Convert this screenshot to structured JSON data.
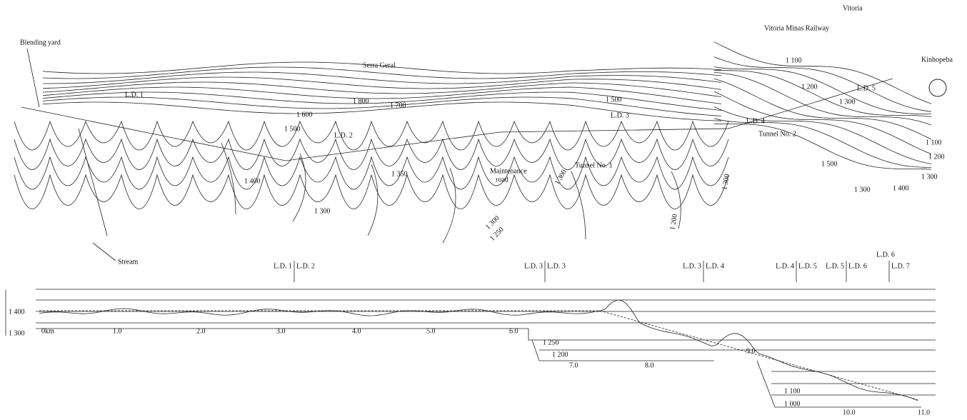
{
  "map": {
    "labels": [
      "Blending yard",
      "Serra Geral",
      "1 800",
      "1 700",
      "1 600",
      "1 500",
      "L.D. 1",
      "L.D. 2",
      "1 400",
      "1 350",
      "1 300",
      "Maintenance",
      "road",
      "1 300",
      "1 500",
      "L.D. 3",
      "Tunnel No. 1",
      "1 300",
      "1 250",
      "1 200",
      "1 300",
      "Stream",
      "Vitoria",
      "Vitoria Minas Railway",
      "1 100",
      "1 200",
      "1 300",
      "Kinhopeba",
      "L.D. 4",
      "L.D. 5",
      "Tunnel No. 2",
      "1 100",
      "1 200",
      "1 300",
      "1 400",
      "1 500",
      "1 300"
    ]
  },
  "profile": {
    "markers": [
      {
        "left": "L.D. 1",
        "right": "L.D. 2"
      },
      {
        "left": "L.D. 3",
        "right": "L.D. 3"
      },
      {
        "left": "L.D. 3",
        "right": "L.D. 4"
      },
      {
        "left": "L.D. 4",
        "right": "L.D. 5"
      },
      {
        "left": "L.D. 5",
        "right": "L.D. 6"
      },
      {
        "left": "L.D. 6",
        "right": "L.D. 7"
      }
    ],
    "distance_labels": [
      "0km",
      "1.0",
      "2.0",
      "3.0",
      "4.0",
      "5.0",
      "6.0",
      "7.0",
      "8.0",
      "9.0",
      "10.0",
      "11.0"
    ],
    "elevation_labels": [
      "1 400",
      "1 300",
      "1 250",
      "1 200",
      "1 100",
      "1 000"
    ]
  }
}
